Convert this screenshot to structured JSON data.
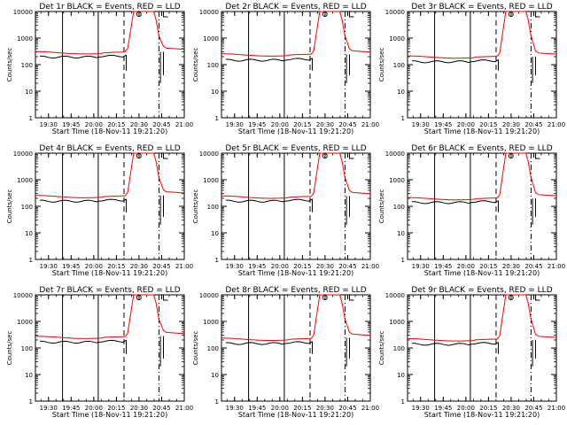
{
  "figure": {
    "title_prefix": "Det",
    "title_suffix": "BLACK = Events, RED = LLD",
    "xlabel": "Start Time (18-Nov-11 19:21:20)",
    "ylabel": "Counts/sec",
    "x_ticks": [
      "19:30",
      "19:45",
      "20:00",
      "20:15",
      "20:30",
      "20:45",
      "21:00"
    ],
    "y_ticks": [
      "1",
      "10",
      "100",
      "1000",
      "10000"
    ],
    "colors": {
      "events": "#000000",
      "lld": "#ff0000",
      "axes": "#000000",
      "background": "#ffffff"
    },
    "icons": {
      "marker": "circle-marker-icon",
      "bracket": "bracket-marker-icon"
    }
  },
  "chart_data": [
    {
      "type": "line",
      "title": "Det 1r BLACK = Events, RED = LLD",
      "xlabel": "Start Time (18-Nov-11 19:21:20)",
      "ylabel": "Counts/sec",
      "xlim": [
        "19:21:20",
        "21:00"
      ],
      "ylim": [
        1,
        10000
      ],
      "yscale": "log",
      "series": [
        {
          "name": "Events",
          "color": "#000000",
          "baseline": 210
        },
        {
          "name": "LLD",
          "color": "#ff0000",
          "baseline": 290,
          "tail": 380
        }
      ]
    },
    {
      "type": "line",
      "title": "Det 2r BLACK = Events, RED = LLD",
      "xlabel": "Start Time (18-Nov-11 19:21:20)",
      "ylabel": "Counts/sec",
      "xlim": [
        "19:21:20",
        "21:00"
      ],
      "ylim": [
        1,
        10000
      ],
      "yscale": "log",
      "series": [
        {
          "name": "Events",
          "color": "#000000",
          "baseline": 160
        },
        {
          "name": "LLD",
          "color": "#ff0000",
          "baseline": 240,
          "tail": 300
        }
      ]
    },
    {
      "type": "line",
      "title": "Det 3r BLACK = Events, RED = LLD",
      "xlabel": "Start Time (18-Nov-11 19:21:20)",
      "ylabel": "Counts/sec",
      "xlim": [
        "19:21:20",
        "21:00"
      ],
      "ylim": [
        1,
        10000
      ],
      "yscale": "log",
      "series": [
        {
          "name": "Events",
          "color": "#000000",
          "baseline": 140
        },
        {
          "name": "LLD",
          "color": "#ff0000",
          "baseline": 200,
          "tail": 250
        }
      ]
    },
    {
      "type": "line",
      "title": "Det 4r BLACK = Events, RED = LLD",
      "xlabel": "Start Time (18-Nov-11 19:21:20)",
      "ylabel": "Counts/sec",
      "xlim": [
        "19:21:20",
        "21:00"
      ],
      "ylim": [
        1,
        10000
      ],
      "yscale": "log",
      "series": [
        {
          "name": "Events",
          "color": "#000000",
          "baseline": 170
        },
        {
          "name": "LLD",
          "color": "#ff0000",
          "baseline": 240,
          "tail": 320
        }
      ]
    },
    {
      "type": "line",
      "title": "Det 5r BLACK = Events, RED = LLD",
      "xlabel": "Start Time (18-Nov-11 19:21:20)",
      "ylabel": "Counts/sec",
      "xlim": [
        "19:21:20",
        "21:00"
      ],
      "ylim": [
        1,
        10000
      ],
      "yscale": "log",
      "series": [
        {
          "name": "Events",
          "color": "#000000",
          "baseline": 170
        },
        {
          "name": "LLD",
          "color": "#ff0000",
          "baseline": 230,
          "tail": 300
        }
      ]
    },
    {
      "type": "line",
      "title": "Det 6r BLACK = Events, RED = LLD",
      "xlabel": "Start Time (18-Nov-11 19:21:20)",
      "ylabel": "Counts/sec",
      "xlim": [
        "19:21:20",
        "21:00"
      ],
      "ylim": [
        1,
        10000
      ],
      "yscale": "log",
      "series": [
        {
          "name": "Events",
          "color": "#000000",
          "baseline": 150
        },
        {
          "name": "LLD",
          "color": "#ff0000",
          "baseline": 200,
          "tail": 250
        }
      ]
    },
    {
      "type": "line",
      "title": "Det 7r BLACK = Events, RED = LLD",
      "xlabel": "Start Time (18-Nov-11 19:21:20)",
      "ylabel": "Counts/sec",
      "xlim": [
        "19:21:20",
        "21:00"
      ],
      "ylim": [
        1,
        10000
      ],
      "yscale": "log",
      "series": [
        {
          "name": "Events",
          "color": "#000000",
          "baseline": 180
        },
        {
          "name": "LLD",
          "color": "#ff0000",
          "baseline": 260,
          "tail": 350
        }
      ]
    },
    {
      "type": "line",
      "title": "Det 8r BLACK = Events, RED = LLD",
      "xlabel": "Start Time (18-Nov-11 19:21:20)",
      "ylabel": "Counts/sec",
      "xlim": [
        "19:21:20",
        "21:00"
      ],
      "ylim": [
        1,
        10000
      ],
      "yscale": "log",
      "series": [
        {
          "name": "Events",
          "color": "#000000",
          "baseline": 160
        },
        {
          "name": "LLD",
          "color": "#ff0000",
          "baseline": 220,
          "tail": 300
        }
      ]
    },
    {
      "type": "line",
      "title": "Det 9r BLACK = Events, RED = LLD",
      "xlabel": "Start Time (18-Nov-11 19:21:20)",
      "ylabel": "Counts/sec",
      "xlim": [
        "19:21:20",
        "21:00"
      ],
      "ylim": [
        1,
        10000
      ],
      "yscale": "log",
      "series": [
        {
          "name": "Events",
          "color": "#000000",
          "baseline": 150
        },
        {
          "name": "LLD",
          "color": "#ff0000",
          "baseline": 210,
          "tail": 250
        }
      ]
    }
  ]
}
